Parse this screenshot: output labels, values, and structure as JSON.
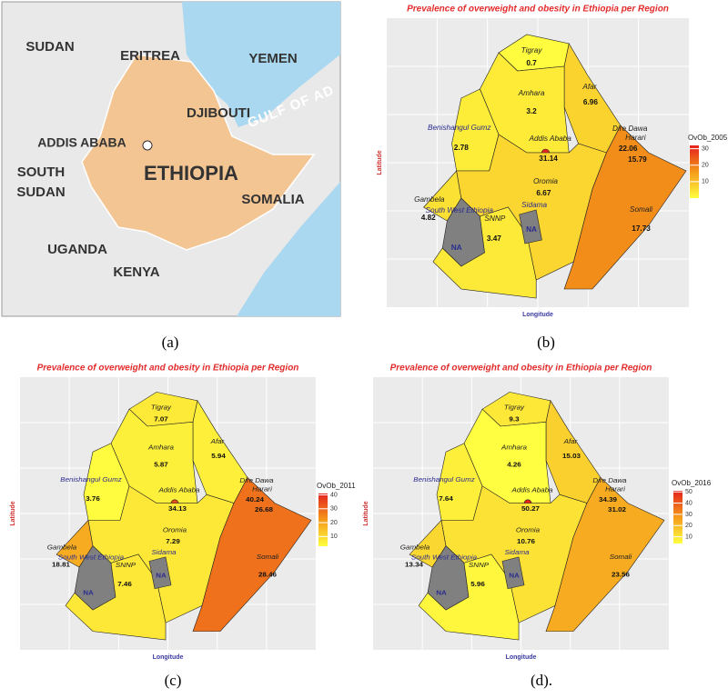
{
  "panel_a": {
    "labels": [
      "SUDAN",
      "ERITREA",
      "YEMEN",
      "DJIBOUTI",
      "GULF OF AD",
      "ADDIS ABABA",
      "ETHIOPIA",
      "SOUTH",
      "SUDAN",
      "SOMALIA",
      "UGANDA",
      "KENYA"
    ],
    "caption": "(a)"
  },
  "maps": [
    {
      "title": "Prevalence of overweight and obesity in Ethiopia per Region",
      "x_label": "Longitude",
      "y_label": "Latitude",
      "legend_title": "OvOb_2005",
      "scale_lim": [
        0,
        32
      ],
      "ticks": [
        10,
        20,
        30
      ],
      "colors": [
        "#ffff40",
        "#f59a1a",
        "#e4211c"
      ],
      "na_color": "#808080",
      "caption": "(b)",
      "regions": [
        {
          "name": "Tigray",
          "value": 0.7
        },
        {
          "name": "Afar",
          "value": 6.96
        },
        {
          "name": "Amhara",
          "value": 3.2
        },
        {
          "name": "Benishangul Gumz",
          "value": 2.78
        },
        {
          "name": "Addis Ababa",
          "value": 31.14
        },
        {
          "name": "Dire Dawa",
          "value": 22.06
        },
        {
          "name": "Harari",
          "value": 15.79
        },
        {
          "name": "Gambela",
          "value": 4.82
        },
        {
          "name": "Oromia",
          "value": 6.67
        },
        {
          "name": "South West Ethiopia",
          "value": "NA"
        },
        {
          "name": "SNNP",
          "value": 3.47
        },
        {
          "name": "Sidama",
          "value": "NA"
        },
        {
          "name": "Somali",
          "value": 17.73
        }
      ]
    },
    {
      "title": "Prevalence of overweight and obesity in Ethiopia per Region",
      "x_label": "Longitude",
      "y_label": "Latitude",
      "legend_title": "OvOb_2011",
      "scale_lim": [
        3,
        41
      ],
      "ticks": [
        10,
        20,
        30,
        40
      ],
      "colors": [
        "#ffff40",
        "#f59a1a",
        "#e4211c"
      ],
      "na_color": "#808080",
      "caption": "(c)",
      "regions": [
        {
          "name": "Tigray",
          "value": 7.07
        },
        {
          "name": "Afar",
          "value": 5.94
        },
        {
          "name": "Amhara",
          "value": 5.87
        },
        {
          "name": "Benishangul Gumz",
          "value": 3.76
        },
        {
          "name": "Addis Ababa",
          "value": 34.13
        },
        {
          "name": "Dire Dawa",
          "value": 40.24
        },
        {
          "name": "Harari",
          "value": 26.68
        },
        {
          "name": "Gambela",
          "value": 18.81
        },
        {
          "name": "Oromia",
          "value": 7.29
        },
        {
          "name": "South West Ethiopia",
          "value": "NA"
        },
        {
          "name": "SNNP",
          "value": 7.46
        },
        {
          "name": "Sidama",
          "value": "NA"
        },
        {
          "name": "Somali",
          "value": 28.46
        }
      ]
    },
    {
      "title": "Prevalence of overweight and obesity in Ethiopia per Region",
      "x_label": "Longitude",
      "y_label": "Latitude",
      "legend_title": "OvOb_2016",
      "scale_lim": [
        4,
        51
      ],
      "ticks": [
        10,
        20,
        30,
        40,
        50
      ],
      "colors": [
        "#ffff40",
        "#f59a1a",
        "#e4211c"
      ],
      "na_color": "#808080",
      "caption": "(d).",
      "regions": [
        {
          "name": "Tigray",
          "value": 9.3
        },
        {
          "name": "Afar",
          "value": 15.03
        },
        {
          "name": "Amhara",
          "value": 4.26
        },
        {
          "name": "Benishangul Gumz",
          "value": 7.64
        },
        {
          "name": "Addis Ababa",
          "value": 50.27
        },
        {
          "name": "Dire Dawa",
          "value": 34.39
        },
        {
          "name": "Harari",
          "value": 31.02
        },
        {
          "name": "Gambela",
          "value": 13.34
        },
        {
          "name": "Oromia",
          "value": 10.76
        },
        {
          "name": "South West Ethiopia",
          "value": "NA"
        },
        {
          "name": "SNNP",
          "value": 5.96
        },
        {
          "name": "Sidama",
          "value": "NA"
        },
        {
          "name": "Somali",
          "value": 23.56
        }
      ]
    }
  ]
}
